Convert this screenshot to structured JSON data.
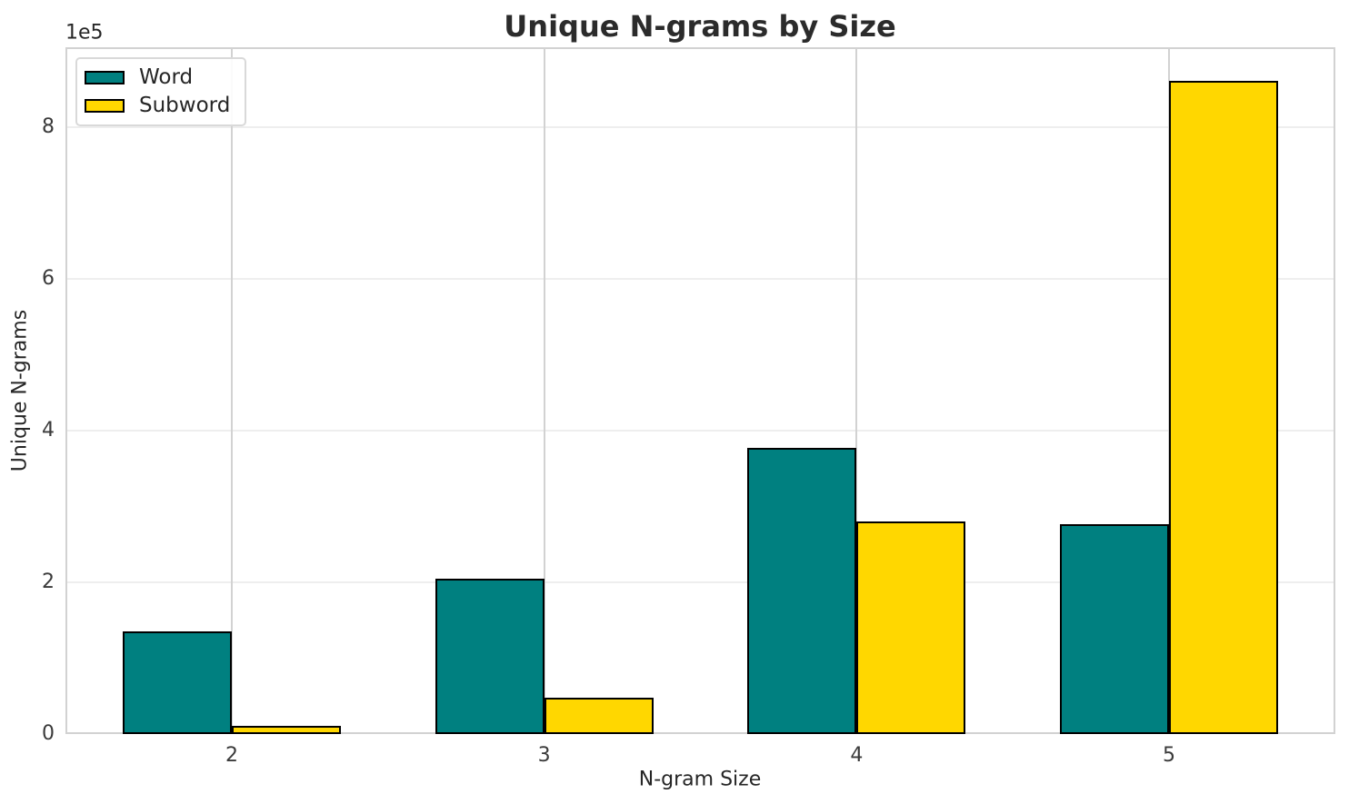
{
  "figure": {
    "title": "Unique N-grams by Size",
    "xlabel": "N-gram Size",
    "ylabel": "Unique N-grams",
    "offset_text": "1e5"
  },
  "chart_data": {
    "type": "bar",
    "title": "Unique N-grams by Size",
    "xlabel": "N-gram Size",
    "ylabel": "Unique N-grams",
    "categories": [
      "2",
      "3",
      "4",
      "5"
    ],
    "series": [
      {
        "name": "Word",
        "color": "#008080",
        "values": [
          135000,
          205000,
          377000,
          277000
        ]
      },
      {
        "name": "Subword",
        "color": "#FFD700",
        "values": [
          11000,
          48000,
          280000,
          861000
        ]
      }
    ],
    "ylim": [
      0,
      905000
    ],
    "yticks": {
      "values": [
        0,
        200000,
        400000,
        600000,
        800000
      ],
      "labels": [
        "0",
        "2",
        "4",
        "6",
        "8"
      ],
      "offset": "1e5"
    },
    "grid": true,
    "legend_position": "upper left",
    "bar_edge_color": "#000000"
  },
  "colors": {
    "grid_horizontal": "#eeeeee",
    "grid_vertical": "#d2d2d2",
    "spine": "#d2d2d2",
    "text": "#262626"
  }
}
